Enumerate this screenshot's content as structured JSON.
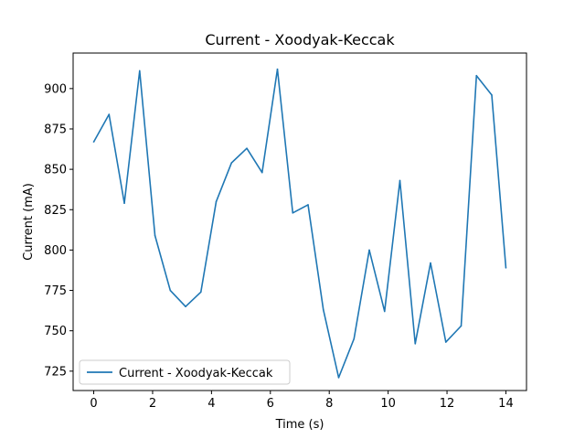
{
  "chart_data": {
    "type": "line",
    "title": "Current - Xoodyak-Keccak",
    "xlabel": "Time (s)",
    "ylabel": "Current (mA)",
    "xlim": [
      -0.7,
      14.7
    ],
    "ylim": [
      713,
      922
    ],
    "xticks": [
      0,
      2,
      4,
      6,
      8,
      10,
      12,
      14
    ],
    "yticks": [
      725,
      750,
      775,
      800,
      825,
      850,
      875,
      900
    ],
    "grid": false,
    "legend_position": "lower-left",
    "series": [
      {
        "name": "Current - Xoodyak-Keccak",
        "color": "#1f77b4",
        "x": [
          0,
          0.52,
          1.04,
          1.56,
          2.08,
          2.6,
          3.12,
          3.64,
          4.16,
          4.68,
          5.2,
          5.72,
          6.24,
          6.76,
          7.28,
          7.8,
          8.32,
          8.84,
          9.36,
          9.88,
          10.4,
          10.92,
          11.44,
          11.96,
          12.48,
          13.0,
          13.52,
          14.0
        ],
        "y": [
          867,
          884,
          829,
          911,
          809,
          775,
          765,
          774,
          830,
          854,
          863,
          848,
          912,
          823,
          828,
          763,
          721,
          745,
          800,
          762,
          843,
          742,
          792,
          743,
          753,
          908,
          896,
          789
        ]
      }
    ]
  }
}
